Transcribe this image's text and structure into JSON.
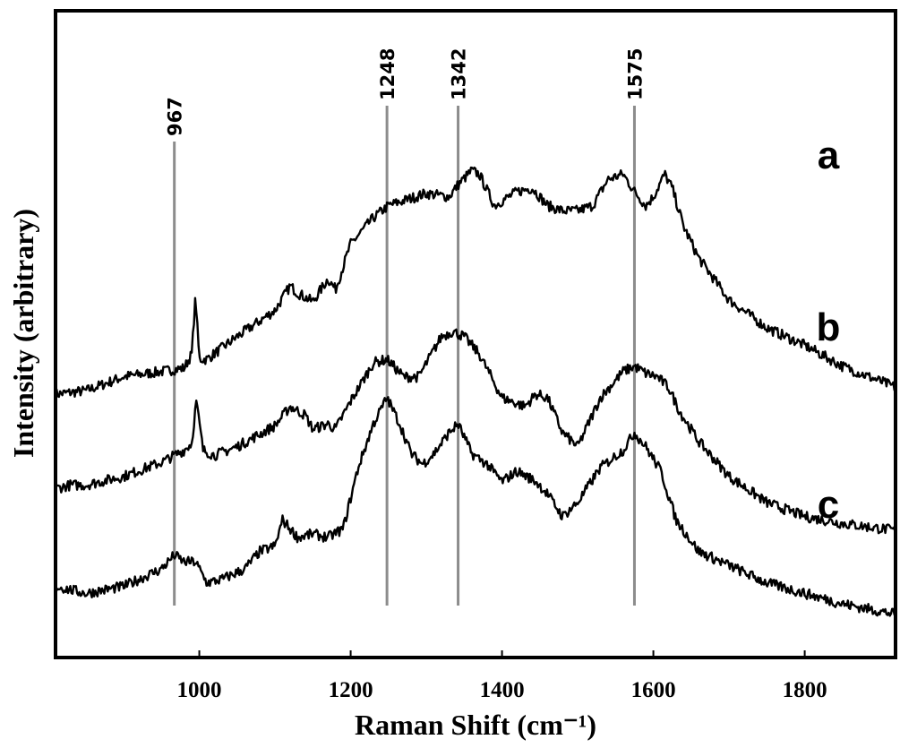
{
  "chart_data": {
    "type": "line",
    "xlabel": "Raman Shift (cm⁻¹)",
    "ylabel": "Intensity (arbitrary)",
    "xlim": [
      810,
      1920
    ],
    "x_ticks": [
      1000,
      1200,
      1400,
      1600,
      1800
    ],
    "y_ticks": [],
    "grid": false,
    "legend": "none (series labeled at right end of each trace)",
    "peak_markers": [
      {
        "x": 967,
        "label": "967"
      },
      {
        "x": 1248,
        "label": "1248"
      },
      {
        "x": 1342,
        "label": "1342"
      },
      {
        "x": 1575,
        "label": "1575"
      }
    ],
    "series": [
      {
        "name": "a",
        "x": [
          810,
          850,
          900,
          950,
          980,
          990,
          995,
          1000,
          1010,
          1050,
          1100,
          1120,
          1130,
          1150,
          1170,
          1180,
          1190,
          1200,
          1230,
          1250,
          1300,
          1330,
          1342,
          1360,
          1370,
          1390,
          1420,
          1440,
          1460,
          1480,
          1500,
          1520,
          1540,
          1560,
          1575,
          1590,
          1600,
          1615,
          1625,
          1640,
          1660,
          1700,
          1750,
          1800,
          1850,
          1920
        ],
        "y": [
          0.82,
          0.84,
          0.92,
          0.95,
          0.97,
          1.05,
          1.38,
          1.02,
          1.02,
          1.15,
          1.3,
          1.44,
          1.4,
          1.35,
          1.48,
          1.42,
          1.55,
          1.68,
          1.83,
          1.9,
          1.97,
          1.95,
          2.02,
          2.1,
          2.08,
          1.9,
          1.98,
          2.0,
          1.9,
          1.87,
          1.87,
          1.9,
          2.05,
          2.08,
          1.98,
          1.9,
          1.95,
          2.08,
          2.0,
          1.78,
          1.6,
          1.36,
          1.2,
          1.1,
          0.98,
          0.86
        ]
      },
      {
        "name": "b",
        "x": [
          810,
          830,
          850,
          900,
          950,
          980,
          990,
          996,
          1005,
          1020,
          1050,
          1100,
          1120,
          1140,
          1150,
          1170,
          1180,
          1200,
          1230,
          1248,
          1270,
          1290,
          1320,
          1335,
          1350,
          1370,
          1400,
          1430,
          1445,
          1460,
          1480,
          1500,
          1530,
          1560,
          1575,
          1590,
          1605,
          1620,
          1635,
          1660,
          1700,
          1750,
          1800,
          1850,
          1920
        ],
        "y": [
          0.28,
          0.3,
          0.3,
          0.35,
          0.43,
          0.5,
          0.54,
          0.78,
          0.5,
          0.47,
          0.52,
          0.64,
          0.75,
          0.7,
          0.62,
          0.65,
          0.62,
          0.78,
          1.0,
          1.02,
          0.92,
          0.92,
          1.15,
          1.18,
          1.15,
          1.05,
          0.8,
          0.75,
          0.82,
          0.8,
          0.6,
          0.52,
          0.8,
          0.95,
          0.98,
          0.94,
          0.92,
          0.86,
          0.72,
          0.55,
          0.35,
          0.2,
          0.12,
          0.08,
          0.04
        ]
      },
      {
        "name": "c",
        "x": [
          810,
          850,
          900,
          950,
          967,
          980,
          995,
          1010,
          1030,
          1060,
          1080,
          1100,
          1110,
          1130,
          1150,
          1170,
          1190,
          1210,
          1230,
          1248,
          1265,
          1280,
          1295,
          1310,
          1330,
          1342,
          1360,
          1380,
          1400,
          1420,
          1445,
          1460,
          1480,
          1500,
          1530,
          1560,
          1575,
          1590,
          1610,
          1630,
          1660,
          1700,
          1750,
          1800,
          1850,
          1920
        ],
        "y": [
          -0.28,
          -0.32,
          -0.28,
          -0.18,
          -0.1,
          -0.14,
          -0.14,
          -0.26,
          -0.24,
          -0.18,
          -0.08,
          -0.05,
          0.1,
          0.0,
          0.02,
          0.0,
          0.05,
          0.4,
          0.65,
          0.8,
          0.65,
          0.48,
          0.42,
          0.48,
          0.6,
          0.65,
          0.48,
          0.42,
          0.32,
          0.38,
          0.32,
          0.25,
          0.12,
          0.2,
          0.4,
          0.5,
          0.6,
          0.52,
          0.38,
          0.1,
          -0.08,
          -0.16,
          -0.26,
          -0.32,
          -0.38,
          -0.44
        ]
      }
    ]
  }
}
